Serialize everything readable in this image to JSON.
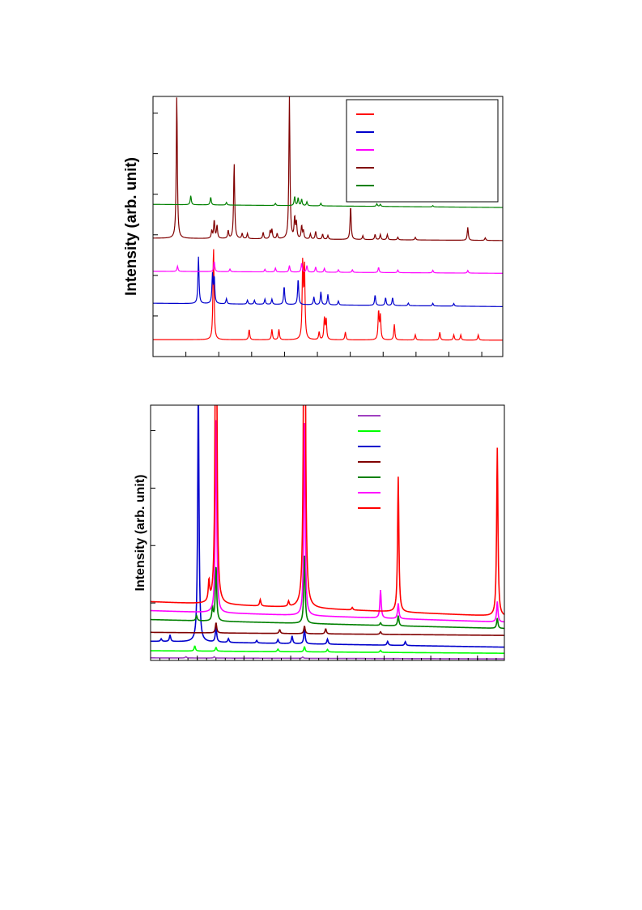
{
  "chart_data": [
    {
      "type": "line",
      "ylabel": "Intensity (arb. unit)",
      "xlim": [
        0,
        100
      ],
      "ylim": [
        0,
        100
      ],
      "legend_position": "top-right",
      "grid": false,
      "series": [
        {
          "color": "#ff0000",
          "baseline": 6.5,
          "baseline_end": 6.3,
          "peaks": [
            [
              17.3,
              36
            ],
            [
              27.5,
              4
            ],
            [
              34.0,
              4
            ],
            [
              36.0,
              4
            ],
            [
              42.8,
              29
            ],
            [
              43.3,
              28
            ],
            [
              47.5,
              3
            ],
            [
              49.0,
              8
            ],
            [
              49.5,
              8
            ],
            [
              55.0,
              3
            ],
            [
              64.5,
              11
            ],
            [
              65.0,
              9
            ],
            [
              69.0,
              6
            ],
            [
              75.0,
              2
            ],
            [
              82.0,
              3
            ],
            [
              86.0,
              2
            ],
            [
              88.0,
              2
            ],
            [
              93.0,
              2
            ]
          ]
        },
        {
          "color": "#0000cc",
          "baseline": 20.5,
          "baseline_end": 19.2,
          "peaks": [
            [
              13.0,
              18
            ],
            [
              17.0,
              11
            ],
            [
              17.5,
              10
            ],
            [
              21.0,
              2
            ],
            [
              27.0,
              1.5
            ],
            [
              29.0,
              1.5
            ],
            [
              32.0,
              2
            ],
            [
              34.0,
              2
            ],
            [
              37.5,
              7
            ],
            [
              41.5,
              10
            ],
            [
              46.0,
              3
            ],
            [
              48.0,
              5
            ],
            [
              50.0,
              4
            ],
            [
              53.0,
              1.5
            ],
            [
              63.5,
              4
            ],
            [
              66.5,
              3
            ],
            [
              68.5,
              3
            ],
            [
              73.0,
              1
            ],
            [
              80.0,
              1
            ],
            [
              86.0,
              1
            ]
          ]
        },
        {
          "color": "#ff00ff",
          "baseline": 32.8,
          "baseline_end": 32.0,
          "peaks": [
            [
              7.0,
              2
            ],
            [
              17.5,
              4
            ],
            [
              22.0,
              1
            ],
            [
              32.0,
              1
            ],
            [
              35.0,
              1.5
            ],
            [
              39.0,
              2.5
            ],
            [
              42.5,
              3.5
            ],
            [
              44.0,
              2.5
            ],
            [
              46.5,
              2
            ],
            [
              49.0,
              1.5
            ],
            [
              53.0,
              1
            ],
            [
              57.0,
              1
            ],
            [
              64.5,
              2
            ],
            [
              70.0,
              1
            ],
            [
              80.0,
              1
            ],
            [
              90.0,
              1
            ]
          ]
        },
        {
          "color": "#800000",
          "baseline": 45.5,
          "baseline_end": 44.6,
          "peaks": [
            [
              6.8,
              55
            ],
            [
              16.8,
              3
            ],
            [
              17.5,
              7
            ],
            [
              18.3,
              5
            ],
            [
              21.5,
              3
            ],
            [
              23.2,
              29
            ],
            [
              25.5,
              2
            ],
            [
              27.0,
              2
            ],
            [
              31.5,
              2.5
            ],
            [
              33.5,
              3
            ],
            [
              34.0,
              3.5
            ],
            [
              35.5,
              2
            ],
            [
              39.0,
              55
            ],
            [
              40.5,
              8
            ],
            [
              41.0,
              6
            ],
            [
              42.5,
              5
            ],
            [
              43.0,
              3
            ],
            [
              45.0,
              2
            ],
            [
              46.5,
              3
            ],
            [
              48.5,
              2
            ],
            [
              50.0,
              1.5
            ],
            [
              56.5,
              13
            ],
            [
              60.0,
              1.5
            ],
            [
              63.5,
              2
            ],
            [
              65.0,
              2
            ],
            [
              67.0,
              2
            ],
            [
              70.0,
              1
            ],
            [
              75.0,
              1
            ],
            [
              90.0,
              5
            ],
            [
              95.0,
              1
            ]
          ]
        },
        {
          "color": "#008000",
          "baseline": 58.5,
          "baseline_end": 57.3,
          "peaks": [
            [
              10.8,
              3.5
            ],
            [
              16.5,
              3
            ],
            [
              21.0,
              1
            ],
            [
              35.0,
              0.8
            ],
            [
              40.5,
              3.5
            ],
            [
              41.5,
              3
            ],
            [
              42.5,
              2.5
            ],
            [
              44.0,
              1.5
            ],
            [
              48.0,
              1
            ],
            [
              64.0,
              1
            ],
            [
              65.0,
              0.8
            ],
            [
              80.0,
              0.5
            ]
          ]
        }
      ]
    },
    {
      "type": "line",
      "ylabel": "Intensity (arb. unit)",
      "xlim": [
        0,
        100
      ],
      "ylim": [
        0,
        100
      ],
      "legend_position": "top-right",
      "grid": false,
      "series": [
        {
          "color": "#a040c0",
          "baseline": 1.0,
          "baseline_end": 0.6,
          "peaks": [
            [
              10,
              0.5
            ],
            [
              18,
              0.5
            ],
            [
              43,
              0.5
            ]
          ]
        },
        {
          "color": "#00ff00",
          "baseline": 3.8,
          "baseline_end": 2.8,
          "peaks": [
            [
              12.5,
              2
            ],
            [
              18.5,
              1.5
            ],
            [
              36,
              1
            ],
            [
              43.5,
              2
            ],
            [
              50,
              1
            ],
            [
              65,
              0.8
            ]
          ]
        },
        {
          "color": "#0000cc",
          "baseline": 7.5,
          "baseline_end": 5.2,
          "peaks": [
            [
              3,
              1
            ],
            [
              5.5,
              2.5
            ],
            [
              13.5,
              100
            ],
            [
              18.5,
              6
            ],
            [
              22,
              1.5
            ],
            [
              30,
              1
            ],
            [
              36,
              1.5
            ],
            [
              40,
              3
            ],
            [
              43.5,
              6
            ],
            [
              50,
              2
            ],
            [
              67,
              1.5
            ],
            [
              72,
              1.5
            ]
          ]
        },
        {
          "color": "#800000",
          "baseline": 11.0,
          "baseline_end": 9.8,
          "peaks": [
            [
              18.5,
              4
            ],
            [
              36.5,
              1.5
            ],
            [
              43.5,
              3
            ],
            [
              49.5,
              2
            ],
            [
              65,
              1
            ]
          ]
        },
        {
          "color": "#008000",
          "baseline": 16.0,
          "baseline_end": 12.5,
          "peaks": [
            [
              13,
              2
            ],
            [
              17.5,
              5
            ],
            [
              18.5,
              22
            ],
            [
              43.5,
              28
            ],
            [
              65,
              1
            ],
            [
              70,
              4
            ],
            [
              98,
              4
            ]
          ]
        },
        {
          "color": "#ff00ff",
          "baseline": 19.5,
          "baseline_end": 15.0,
          "peaks": [
            [
              18.5,
              80
            ],
            [
              43.5,
              80
            ],
            [
              65,
              11
            ],
            [
              70,
              6
            ],
            [
              98,
              8
            ]
          ]
        },
        {
          "color": "#ff0000",
          "baseline": 23.0,
          "baseline_end": 17.2,
          "peaks": [
            [
              16.5,
              8
            ],
            [
              18.5,
              200
            ],
            [
              31,
              2.5
            ],
            [
              39,
              2
            ],
            [
              43.5,
              250
            ],
            [
              57,
              1
            ],
            [
              70,
              53
            ],
            [
              98,
              66
            ]
          ]
        }
      ]
    }
  ]
}
